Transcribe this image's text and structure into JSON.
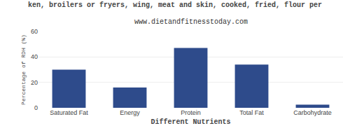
{
  "chart_data": {
    "type": "bar",
    "title": "ken, broilers or fryers, wing, meat and skin, cooked, fried, flour per",
    "subtitle": "www.dietandfitnesstoday.com",
    "xlabel": "Different Nutrients",
    "ylabel": "Percentage of RDH (%)",
    "categories": [
      "Saturated Fat",
      "Energy",
      "Protein",
      "Total Fat",
      "Carbohydrate"
    ],
    "values": [
      30,
      16,
      47,
      34,
      2.5
    ],
    "color": "#2e4b8b",
    "ylim": [
      0,
      60
    ],
    "yticks": [
      0,
      20,
      40,
      60
    ],
    "grid": true
  }
}
